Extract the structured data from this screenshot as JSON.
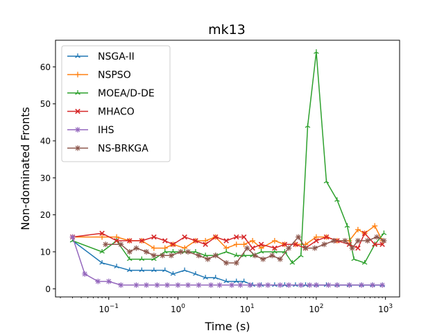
{
  "chart_data": {
    "type": "line",
    "title": "mk13",
    "xlabel": "Time (s)",
    "ylabel": "Non-dominated Fronts",
    "xscale": "log",
    "xlim": [
      0.017,
      1600
    ],
    "ylim": [
      -2.2,
      67.2
    ],
    "x_major_ticks": [
      0.1,
      1,
      10,
      100,
      1000
    ],
    "x_major_tick_labels": [
      {
        "base": "10",
        "exp": "−1"
      },
      {
        "base": "10",
        "exp": "0"
      },
      {
        "base": "10",
        "exp": "1"
      },
      {
        "base": "10",
        "exp": "2"
      },
      {
        "base": "10",
        "exp": "3"
      }
    ],
    "y_ticks": [
      0,
      10,
      20,
      30,
      40,
      50,
      60
    ],
    "y_tick_labels": [
      "0",
      "10",
      "20",
      "30",
      "40",
      "50",
      "60"
    ],
    "grid": false,
    "legend_position": "top-left",
    "series": [
      {
        "name": "NSGA-II",
        "color": "#1f77b4",
        "marker": "tri-up",
        "points": [
          [
            0.03,
            13
          ],
          [
            0.08,
            7
          ],
          [
            0.13,
            6
          ],
          [
            0.2,
            5
          ],
          [
            0.3,
            5
          ],
          [
            0.45,
            5
          ],
          [
            0.65,
            5
          ],
          [
            0.85,
            4
          ],
          [
            1.25,
            5
          ],
          [
            1.8,
            4
          ],
          [
            2.5,
            3
          ],
          [
            3.5,
            3
          ],
          [
            5,
            2
          ],
          [
            7,
            2
          ],
          [
            9,
            2
          ],
          [
            12,
            1
          ],
          [
            16,
            1
          ],
          [
            25,
            1
          ],
          [
            35,
            1
          ],
          [
            50,
            1
          ],
          [
            70,
            1
          ],
          [
            100,
            1
          ],
          [
            140,
            1
          ],
          [
            200,
            1
          ],
          [
            300,
            1
          ],
          [
            450,
            1
          ],
          [
            650,
            1
          ],
          [
            900,
            1
          ]
        ]
      },
      {
        "name": "NSPSO",
        "color": "#ff7f0e",
        "marker": "plus",
        "points": [
          [
            0.03,
            14
          ],
          [
            0.08,
            14
          ],
          [
            0.13,
            14
          ],
          [
            0.2,
            13
          ],
          [
            0.3,
            13
          ],
          [
            0.45,
            11
          ],
          [
            0.65,
            11
          ],
          [
            0.85,
            12
          ],
          [
            1.25,
            11
          ],
          [
            1.8,
            13
          ],
          [
            2.5,
            13
          ],
          [
            3.5,
            14
          ],
          [
            5,
            11
          ],
          [
            7,
            12
          ],
          [
            9,
            12
          ],
          [
            12,
            13
          ],
          [
            16,
            11
          ],
          [
            25,
            13
          ],
          [
            35,
            12
          ],
          [
            50,
            12
          ],
          [
            70,
            12
          ],
          [
            100,
            14
          ],
          [
            140,
            14
          ],
          [
            200,
            13
          ],
          [
            300,
            13
          ],
          [
            400,
            16
          ],
          [
            500,
            15
          ],
          [
            700,
            17
          ],
          [
            900,
            13
          ]
        ]
      },
      {
        "name": "MOEA/D-DE",
        "color": "#2ca02c",
        "marker": "tri-up",
        "points": [
          [
            0.03,
            13
          ],
          [
            0.08,
            10
          ],
          [
            0.13,
            13
          ],
          [
            0.2,
            8
          ],
          [
            0.3,
            8
          ],
          [
            0.45,
            8
          ],
          [
            0.65,
            10
          ],
          [
            0.85,
            10
          ],
          [
            1.25,
            10
          ],
          [
            1.8,
            10
          ],
          [
            2.5,
            9
          ],
          [
            3.5,
            9
          ],
          [
            5,
            10
          ],
          [
            7,
            9
          ],
          [
            9,
            9
          ],
          [
            12,
            9
          ],
          [
            16,
            10
          ],
          [
            25,
            10
          ],
          [
            35,
            10
          ],
          [
            45,
            7
          ],
          [
            60,
            9
          ],
          [
            75,
            44
          ],
          [
            100,
            64
          ],
          [
            140,
            29
          ],
          [
            200,
            24
          ],
          [
            280,
            17
          ],
          [
            350,
            8
          ],
          [
            500,
            7
          ],
          [
            700,
            12
          ],
          [
            950,
            15
          ]
        ]
      },
      {
        "name": "MHACO",
        "color": "#d62728",
        "marker": "x",
        "points": [
          [
            0.03,
            14
          ],
          [
            0.08,
            15
          ],
          [
            0.13,
            13
          ],
          [
            0.2,
            13
          ],
          [
            0.3,
            13
          ],
          [
            0.45,
            14
          ],
          [
            0.65,
            13
          ],
          [
            0.85,
            12
          ],
          [
            1.25,
            14
          ],
          [
            1.8,
            13
          ],
          [
            2.5,
            12
          ],
          [
            3.5,
            14
          ],
          [
            5,
            13
          ],
          [
            7,
            14
          ],
          [
            9,
            14
          ],
          [
            12,
            11
          ],
          [
            16,
            12
          ],
          [
            25,
            11
          ],
          [
            35,
            12
          ],
          [
            50,
            12
          ],
          [
            70,
            11
          ],
          [
            100,
            13
          ],
          [
            140,
            14
          ],
          [
            200,
            13
          ],
          [
            300,
            12
          ],
          [
            400,
            11
          ],
          [
            500,
            15
          ],
          [
            700,
            12
          ],
          [
            900,
            12
          ]
        ]
      },
      {
        "name": "IHS",
        "color": "#9467bd",
        "marker": "star",
        "points": [
          [
            0.03,
            14
          ],
          [
            0.045,
            4
          ],
          [
            0.07,
            2
          ],
          [
            0.1,
            2
          ],
          [
            0.15,
            1
          ],
          [
            0.25,
            1
          ],
          [
            0.35,
            1
          ],
          [
            0.5,
            1
          ],
          [
            0.7,
            1
          ],
          [
            1,
            1
          ],
          [
            1.4,
            1
          ],
          [
            2,
            1
          ],
          [
            3,
            1
          ],
          [
            4,
            1
          ],
          [
            6,
            1
          ],
          [
            8,
            1
          ],
          [
            11,
            1
          ],
          [
            15,
            1
          ],
          [
            20,
            1
          ],
          [
            30,
            1
          ],
          [
            40,
            1
          ],
          [
            60,
            1
          ],
          [
            80,
            1
          ],
          [
            100,
            1
          ],
          [
            150,
            1
          ],
          [
            200,
            1
          ],
          [
            300,
            1
          ],
          [
            450,
            1
          ],
          [
            650,
            1
          ],
          [
            900,
            1
          ]
        ]
      },
      {
        "name": "NS-BRKGA",
        "color": "#8c564b",
        "marker": "star",
        "points": [
          [
            0.09,
            12
          ],
          [
            0.15,
            12
          ],
          [
            0.2,
            10
          ],
          [
            0.25,
            11
          ],
          [
            0.35,
            10
          ],
          [
            0.45,
            9
          ],
          [
            0.6,
            9
          ],
          [
            0.8,
            9
          ],
          [
            1.1,
            10
          ],
          [
            1.4,
            10
          ],
          [
            2,
            9
          ],
          [
            2.7,
            8
          ],
          [
            3.5,
            9
          ],
          [
            5,
            7
          ],
          [
            7,
            7
          ],
          [
            10,
            11
          ],
          [
            13,
            9
          ],
          [
            17,
            8
          ],
          [
            23,
            9
          ],
          [
            30,
            8
          ],
          [
            40,
            11
          ],
          [
            55,
            14
          ],
          [
            70,
            11
          ],
          [
            95,
            11
          ],
          [
            130,
            12
          ],
          [
            180,
            13
          ],
          [
            260,
            13
          ],
          [
            330,
            11
          ],
          [
            400,
            13
          ],
          [
            550,
            13
          ],
          [
            750,
            14
          ],
          [
            950,
            13
          ]
        ]
      }
    ]
  }
}
